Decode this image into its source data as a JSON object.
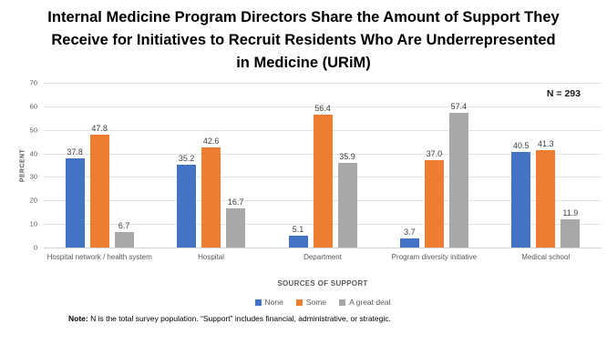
{
  "header": {
    "title_lines": [
      "Internal Medicine Program Directors Share the Amount of Support They",
      "Receive for Initiatives to Recruit Residents Who Are Underrepresented",
      "in Medicine (URiM)"
    ]
  },
  "n_label": "N = 293",
  "chart_data": {
    "type": "bar",
    "title": "Internal Medicine Program Directors Share the Amount of Support They Receive for Initiatives to Recruit Residents Who Are Underrepresented in Medicine (URiM)",
    "categories": [
      "Hospital network / health system",
      "Hospital",
      "Department",
      "Program diversity initiative",
      "Medical school"
    ],
    "series": [
      {
        "name": "None",
        "color": "#4472C4",
        "values": [
          37.8,
          35.2,
          5.1,
          3.7,
          40.5
        ]
      },
      {
        "name": "Some",
        "color": "#ED7D31",
        "values": [
          47.8,
          42.6,
          56.4,
          37.0,
          41.3
        ]
      },
      {
        "name": "A great deal",
        "color": "#A8A8A8",
        "values": [
          6.7,
          16.7,
          35.9,
          57.4,
          11.9
        ]
      }
    ],
    "xlabel": "SOURCES OF SUPPORT",
    "ylabel": "PERCENT",
    "ylim": [
      0,
      70
    ],
    "ytick_step": 10,
    "grid": true,
    "legend_position": "bottom",
    "annotation": "N = 293"
  },
  "note": {
    "label": "Note:",
    "text": " N is the total survey population. “Support” includes financial, administrative, or strategic."
  }
}
